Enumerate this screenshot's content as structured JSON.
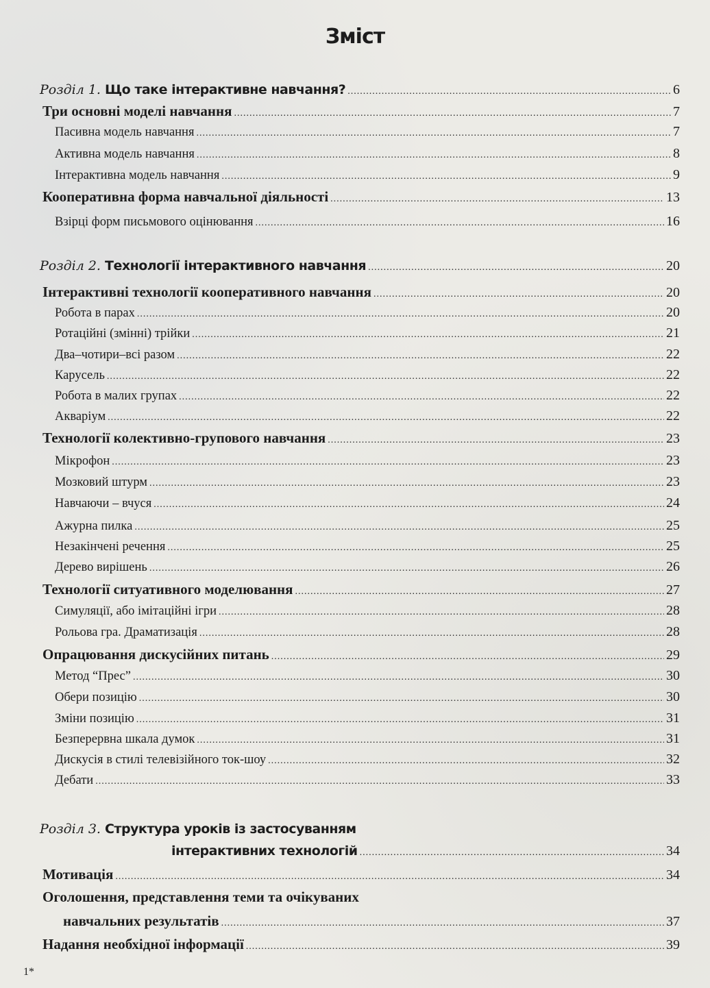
{
  "title": "Зміст",
  "entries": [
    {
      "level": "ch",
      "prefix": "Розділ 1.",
      "text": "Що таке інтерактивне навчання?",
      "page": "6"
    },
    {
      "level": "l1",
      "text": "Три основні моделі навчання",
      "page": "7"
    },
    {
      "level": "l2",
      "text": "Пасивна модель навчання",
      "page": "7"
    },
    {
      "level": "l2",
      "text": "Активна модель навчання",
      "page": "8"
    },
    {
      "level": "l2",
      "text": "Інтерактивна модель навчання",
      "page": "9"
    },
    {
      "level": "l1",
      "text": "Кооперативна форма навчальної діяльності",
      "page": "13"
    },
    {
      "level": "l2",
      "text": "Взірці форм письмового оцінювання",
      "page": "16"
    },
    {
      "level": "ch",
      "prefix": "Розділ 2.",
      "text": "Технології інтерактивного навчання",
      "page": "20"
    },
    {
      "level": "l1",
      "text": "Інтерактивні технології кооперативного навчання",
      "page": "20"
    },
    {
      "level": "l2",
      "text": "Робота в парах",
      "page": "20"
    },
    {
      "level": "l2",
      "text": "Ротаційні (змінні) трійки",
      "page": "21"
    },
    {
      "level": "l2",
      "text": "Два–чотири–всі разом",
      "page": "22"
    },
    {
      "level": "l2",
      "text": "Карусель",
      "page": "22"
    },
    {
      "level": "l2",
      "text": "Робота в малих групах",
      "page": "22"
    },
    {
      "level": "l2",
      "text": "Акваріум",
      "page": "22"
    },
    {
      "level": "l1",
      "text": "Технології колективно-групового навчання",
      "page": "23"
    },
    {
      "level": "l2",
      "text": "Мікрофон",
      "page": "23"
    },
    {
      "level": "l2",
      "text": "Мозковий штурм",
      "page": "23"
    },
    {
      "level": "l2",
      "text": "Навчаючи – вчуся",
      "page": "24"
    },
    {
      "level": "l2",
      "text": "Ажурна пилка",
      "page": "25"
    },
    {
      "level": "l2",
      "text": "Незакінчені речення",
      "page": "25"
    },
    {
      "level": "l2",
      "text": "Дерево вирішень",
      "page": "26"
    },
    {
      "level": "l1",
      "text": "Технології ситуативного моделювання",
      "page": "27"
    },
    {
      "level": "l2",
      "text": "Симуляції, або імітаційні ігри",
      "page": "28"
    },
    {
      "level": "l2",
      "text": "Рольова гра. Драматизація",
      "page": "28"
    },
    {
      "level": "l1",
      "text": "Опрацювання дискусійних питань",
      "page": "29"
    },
    {
      "level": "l2",
      "text": "Метод “Прес”",
      "page": "30"
    },
    {
      "level": "l2",
      "text": "Обери позицію",
      "page": "30"
    },
    {
      "level": "l2",
      "text": "Зміни позицію",
      "page": "31"
    },
    {
      "level": "l2",
      "text": "Безперервна шкала думок",
      "page": "31"
    },
    {
      "level": "l2",
      "text": "Дискусія в стилі телевізійного ток-шоу",
      "page": "32"
    },
    {
      "level": "l2",
      "text": "Дебати",
      "page": "33"
    },
    {
      "level": "ch",
      "prefix": "Розділ 3.",
      "text": "Структура уроків із застосуванням",
      "page": ""
    },
    {
      "level": "cont",
      "text": "інтерактивних технологій",
      "page": "34"
    },
    {
      "level": "l1",
      "text": "Мотивація",
      "page": "34"
    },
    {
      "level": "plain",
      "text": "Оголошення, представлення теми та очікуваних",
      "page": ""
    },
    {
      "level": "cont2",
      "text": "навчальних результатів",
      "page": "37"
    },
    {
      "level": "l1",
      "text": "Надання необхідної інформації",
      "page": "39"
    }
  ],
  "footer": "1*"
}
